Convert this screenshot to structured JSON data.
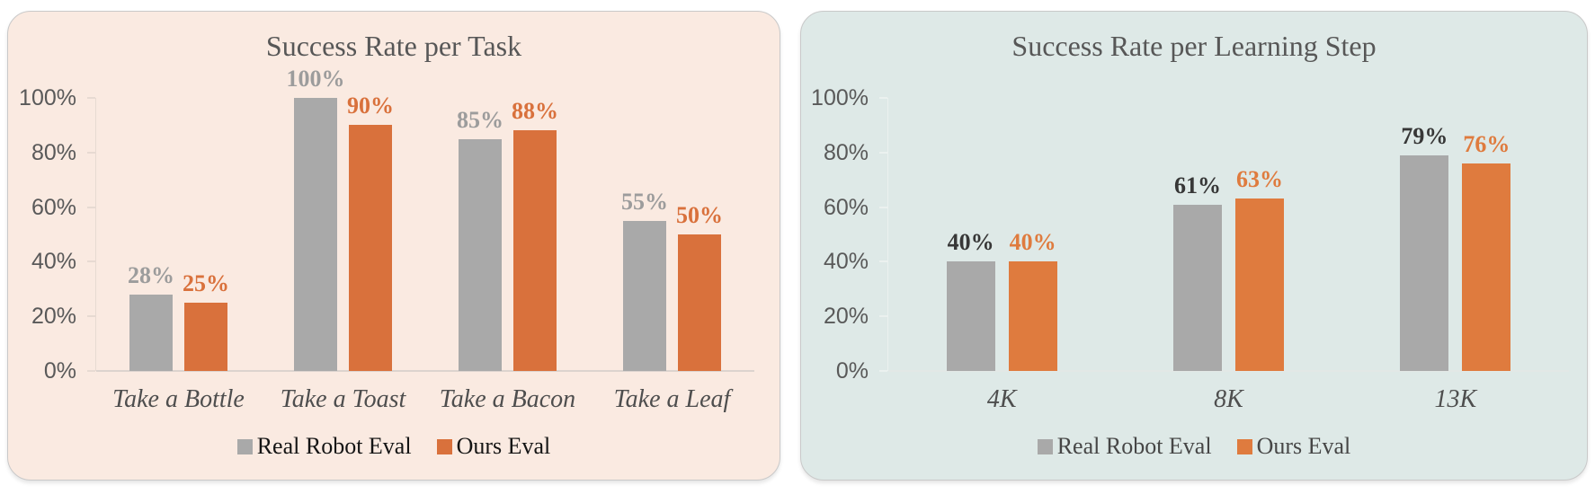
{
  "page_background": "#FFFFFF",
  "chart_data": [
    {
      "type": "bar",
      "title": "Success Rate per Task",
      "categories": [
        "Take a Bottle",
        "Take a Toast",
        "Take a Bacon",
        "Take a Leaf"
      ],
      "series": [
        {
          "name": "Real Robot Eval",
          "values": [
            28,
            100,
            85,
            55
          ],
          "bar_color": "#A9A9A9",
          "label_color": "#9C9C9C"
        },
        {
          "name": "Ours Eval",
          "values": [
            25,
            90,
            88,
            50
          ],
          "bar_color": "#D9713C",
          "label_color": "#D9713C"
        }
      ],
      "value_suffix": "%",
      "ylim": [
        0,
        100
      ],
      "ytick_values": [
        0,
        20,
        40,
        60,
        80,
        100
      ],
      "ytick_labels": [
        "0%",
        "20%",
        "40%",
        "60%",
        "80%",
        "100%"
      ],
      "grid": false,
      "legend_position": "bottom",
      "legend": [
        {
          "label": "Real Robot Eval",
          "swatch_color": "#A9A9A9"
        },
        {
          "label": "Ours Eval",
          "swatch_color": "#D9713C"
        }
      ],
      "panel_background": "#FAEAE1",
      "title_color": "#575757",
      "tick_text_color": "#595959",
      "category_text_color": "#4E4E4E",
      "legend_text_color": "#141414",
      "axis_color": "#E7DAD2",
      "baseline_color": "#DCD3CE"
    },
    {
      "type": "bar",
      "title": "Success Rate per Learning Step",
      "categories": [
        "4K",
        "8K",
        "13K"
      ],
      "series": [
        {
          "name": "Real Robot Eval",
          "values": [
            40,
            61,
            79
          ],
          "bar_color": "#A9A9A9",
          "label_color": "#373737"
        },
        {
          "name": "Ours Eval",
          "values": [
            40,
            63,
            76
          ],
          "bar_color": "#DF7B3E",
          "label_color": "#DF7B3E"
        }
      ],
      "value_suffix": "%",
      "ylim": [
        0,
        100
      ],
      "ytick_values": [
        0,
        20,
        40,
        60,
        80,
        100
      ],
      "ytick_labels": [
        "0%",
        "20%",
        "40%",
        "60%",
        "80%",
        "100%"
      ],
      "grid": false,
      "legend_position": "bottom",
      "legend": [
        {
          "label": "Real Robot Eval",
          "swatch_color": "#A9A9A9"
        },
        {
          "label": "Ours Eval",
          "swatch_color": "#DF7B3E"
        }
      ],
      "panel_background": "#DEE9E7",
      "title_color": "#575757",
      "tick_text_color": "#595959",
      "category_text_color": "#4E4E4E",
      "legend_text_color": "#464646",
      "axis_color": "#EBF1EF",
      "baseline_color": "#E2E8E6"
    }
  ]
}
